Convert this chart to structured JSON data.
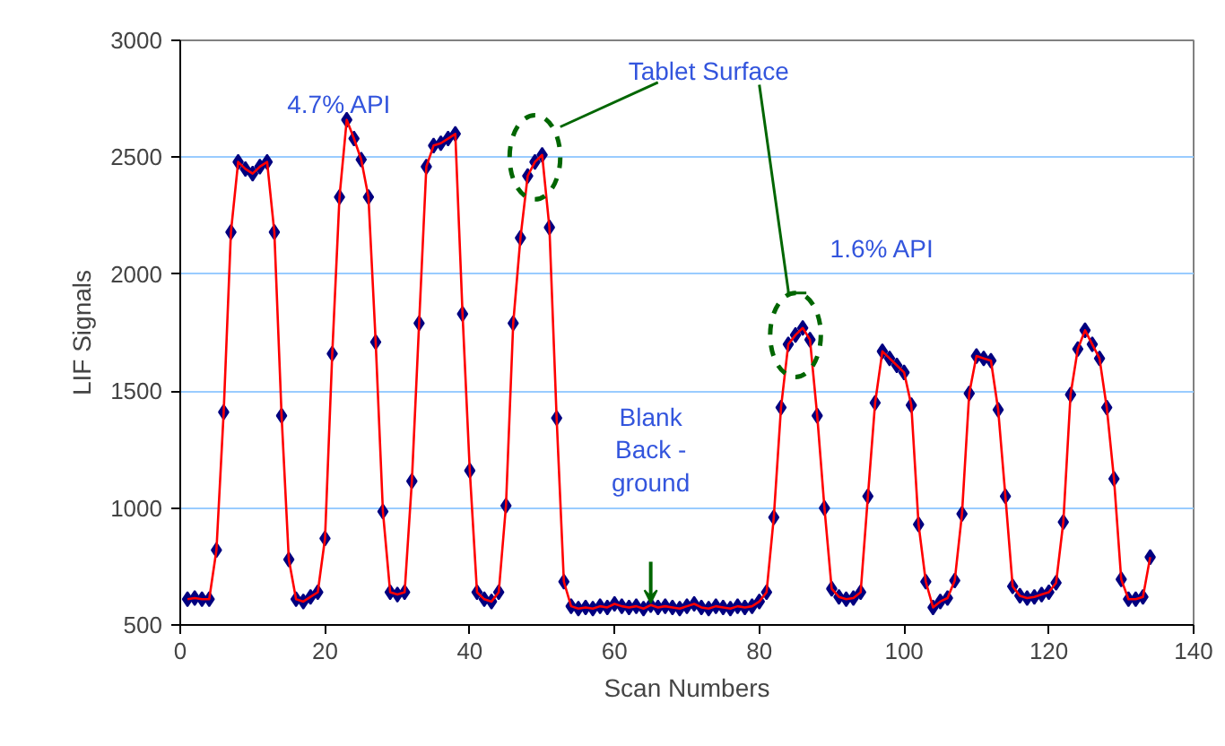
{
  "chart_data": {
    "type": "line",
    "xlabel": "Scan Numbers",
    "ylabel": "LIF Signals",
    "x": [
      1,
      2,
      3,
      4,
      5,
      6,
      7,
      8,
      9,
      10,
      11,
      12,
      13,
      14,
      15,
      16,
      17,
      18,
      19,
      20,
      21,
      22,
      23,
      24,
      25,
      26,
      27,
      28,
      29,
      30,
      31,
      32,
      33,
      34,
      35,
      36,
      37,
      38,
      39,
      40,
      41,
      42,
      43,
      44,
      45,
      46,
      47,
      48,
      49,
      50,
      51,
      52,
      53,
      54,
      55,
      56,
      57,
      58,
      59,
      60,
      61,
      62,
      63,
      64,
      65,
      66,
      67,
      68,
      69,
      70,
      71,
      72,
      73,
      74,
      75,
      76,
      77,
      78,
      79,
      80,
      81,
      82,
      83,
      84,
      85,
      86,
      87,
      88,
      89,
      90,
      91,
      92,
      93,
      94,
      95,
      96,
      97,
      98,
      99,
      100,
      101,
      102,
      103,
      104,
      105,
      106,
      107,
      108,
      109,
      110,
      111,
      112,
      113,
      114,
      115,
      116,
      117,
      118,
      119,
      120,
      121,
      122,
      123,
      124,
      125,
      126,
      127,
      128,
      129,
      130,
      131,
      132,
      133,
      134
    ],
    "series": [
      {
        "color": "#ff0000",
        "values": [
          610,
          615,
          610,
          610,
          820,
          1410,
          2180,
          2480,
          2450,
          2430,
          2460,
          2480,
          2180,
          1395,
          780,
          610,
          600,
          620,
          640,
          870,
          1660,
          2330,
          2660,
          2580,
          2490,
          2330,
          1710,
          985,
          640,
          630,
          640,
          1115,
          1790,
          2460,
          2550,
          2560,
          2580,
          2600,
          1830,
          1160,
          640,
          610,
          600,
          640,
          1010,
          1790,
          2155,
          2420,
          2480,
          2510,
          2200,
          1385,
          685,
          580,
          570,
          575,
          570,
          580,
          575,
          590,
          580,
          575,
          580,
          570,
          585,
          575,
          580,
          575,
          570,
          580,
          590,
          575,
          570,
          580,
          575,
          570,
          580,
          575,
          580,
          600,
          640,
          960,
          1430,
          1700,
          1740,
          1770,
          1720,
          1395,
          1000,
          655,
          620,
          610,
          615,
          640,
          1050,
          1450,
          1670,
          1640,
          1610,
          1580,
          1440,
          930,
          685,
          575,
          600,
          615,
          690,
          975,
          1490,
          1650,
          1640,
          1630,
          1420,
          1050,
          665,
          625,
          615,
          620,
          630,
          640,
          680,
          940,
          1485,
          1680,
          1760,
          1700,
          1640,
          1430,
          1125,
          695,
          610,
          610,
          620,
          790
        ]
      }
    ],
    "marker": "diamond",
    "line_style": "solid",
    "grid": "y",
    "xlim": [
      0,
      140
    ],
    "xticks": [
      0,
      20,
      40,
      60,
      80,
      100,
      120,
      140
    ],
    "ylim": [
      500,
      3000
    ],
    "yticks": [
      500,
      1000,
      1500,
      2000,
      2500,
      3000
    ],
    "annotations": [
      "4.7% API",
      "Tablet Surface",
      "1.6% API",
      "Blank\nBack -\nground"
    ]
  }
}
